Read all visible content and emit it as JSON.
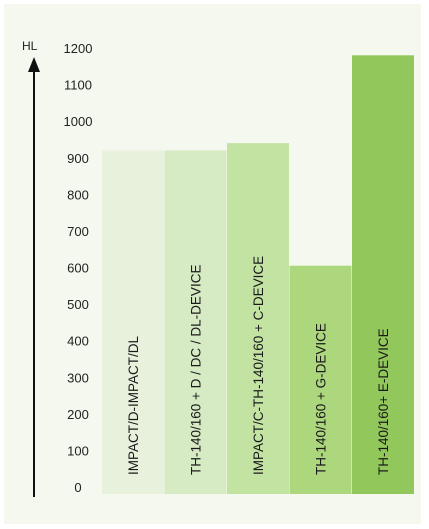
{
  "chart_data": {
    "type": "bar",
    "y_axis_label": "HL",
    "ylim": [
      0,
      1200
    ],
    "y_ticks": [
      "1200",
      "1100",
      "1000",
      "900",
      "800",
      "700",
      "600",
      "500",
      "400",
      "300",
      "200",
      "100",
      "0"
    ],
    "categories": [
      "IMPACT/D-IMPACT/DL",
      "TH-140/160 + D / DC / DL-DEVICE",
      "IMPACT/C-TH-140/160 + C-DEVICE",
      "TH-140/160 + G-DEVICE",
      "TH-140/160+ E-DEVICE"
    ],
    "values": [
      920,
      920,
      940,
      605,
      1180
    ],
    "colors": [
      "#e8f1dc",
      "#d6eac4",
      "#c3e3a3",
      "#acd77d",
      "#92c85b"
    ],
    "grid": false,
    "legend": "none"
  }
}
